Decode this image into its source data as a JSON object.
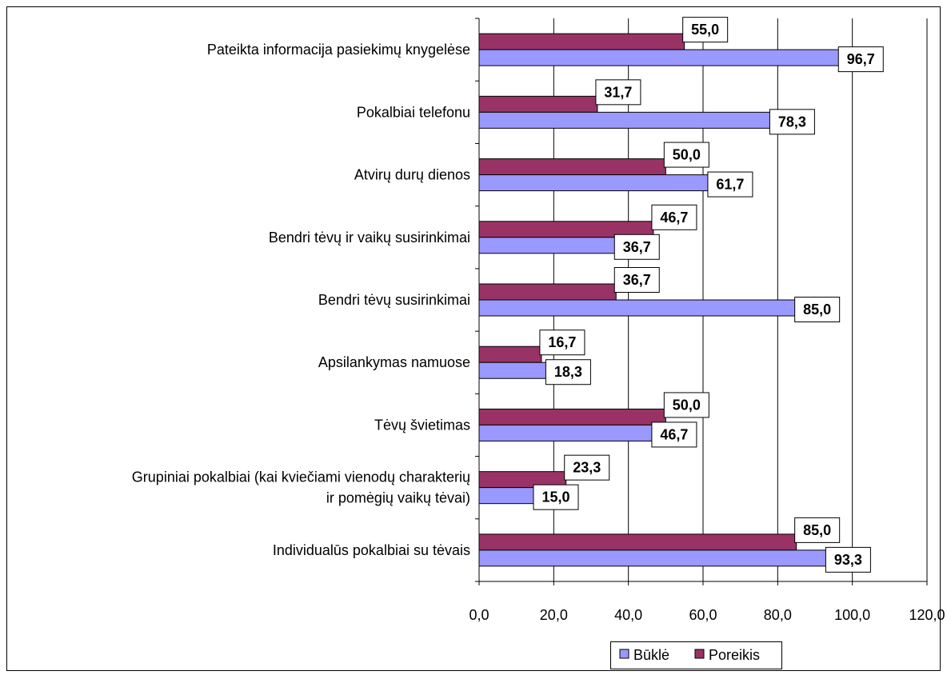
{
  "chart_data": {
    "type": "bar",
    "orientation": "horizontal",
    "title": "",
    "xlabel": "",
    "ylabel": "",
    "xlim": [
      0,
      120
    ],
    "x_ticks": [
      "0,0",
      "20,0",
      "40,0",
      "60,0",
      "80,0",
      "100,0",
      "120,0"
    ],
    "tick_values": [
      0,
      20,
      40,
      60,
      80,
      100,
      120
    ],
    "grid": true,
    "legend_position": "bottom-right",
    "categories": [
      [
        "Pateikta informacija pasiekimų knygelėse"
      ],
      [
        "Pokalbiai telefonu"
      ],
      [
        "Atvirų durų dienos"
      ],
      [
        "Bendri tėvų ir vaikų susirinkimai"
      ],
      [
        "Bendri tėvų susirinkimai"
      ],
      [
        "Apsilankymas namuose"
      ],
      [
        "Tėvų švietimas"
      ],
      [
        "Grupiniai pokalbiai (kai kviečiami vienodų charakterių",
        "ir pomėgių vaikų tėvai)"
      ],
      [
        "Individualūs pokalbiai su tėvais"
      ]
    ],
    "series": [
      {
        "name": "Poreikis",
        "color": "#993366",
        "values": [
          55.0,
          31.7,
          50.0,
          46.7,
          36.7,
          16.7,
          50.0,
          23.3,
          85.0
        ],
        "labels": [
          "55,0",
          "31,7",
          "50,0",
          "46,7",
          "36,7",
          "16,7",
          "50,0",
          "23,3",
          "85,0"
        ]
      },
      {
        "name": "Būklė",
        "color": "#9999ff",
        "values": [
          96.7,
          78.3,
          61.7,
          36.7,
          85.0,
          18.3,
          46.7,
          15.0,
          93.3
        ],
        "labels": [
          "96,7",
          "78,3",
          "61,7",
          "36,7",
          "85,0",
          "18,3",
          "46,7",
          "15,0",
          "93,3"
        ]
      }
    ],
    "legend": [
      {
        "name": "Būklė",
        "color": "#9999ff"
      },
      {
        "name": "Poreikis",
        "color": "#993366"
      }
    ]
  }
}
